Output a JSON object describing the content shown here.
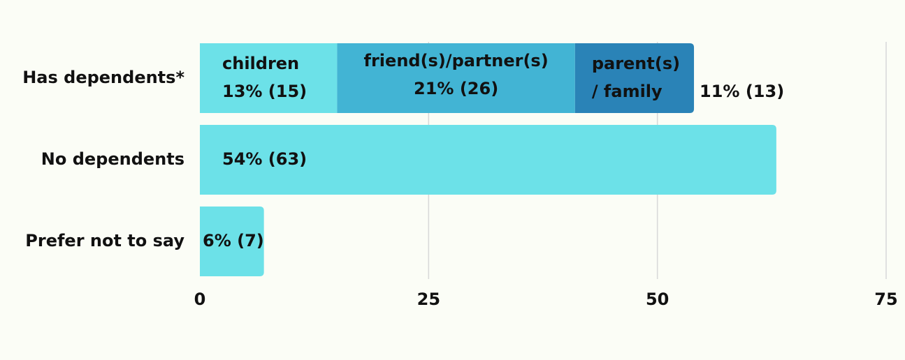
{
  "chart_data": {
    "type": "stacked-barh",
    "categories": [
      "Has dependents*",
      "No dependents",
      "Prefer not to say"
    ],
    "series": [
      {
        "name": "children",
        "color": "#6ce1e8",
        "values": [
          15,
          null,
          null
        ],
        "value_labels": [
          "13% (15)",
          null,
          null
        ]
      },
      {
        "name": "friend(s)/partner(s)",
        "color": "#42b4d4",
        "values": [
          26,
          null,
          null
        ],
        "value_labels": [
          "21% (26)",
          null,
          null
        ]
      },
      {
        "name": "parent(s) / family",
        "color": "#2a83b7",
        "values": [
          13,
          null,
          null
        ],
        "value_labels": [
          "11% (13)",
          null,
          null
        ]
      },
      {
        "color": "#6ce1e8",
        "values": [
          null,
          63,
          7
        ],
        "value_labels": [
          null,
          "54% (63)",
          "6% (7)"
        ]
      }
    ],
    "xlim": [
      0,
      75
    ],
    "xticks": [
      0,
      25,
      50,
      75
    ],
    "grid": true
  }
}
